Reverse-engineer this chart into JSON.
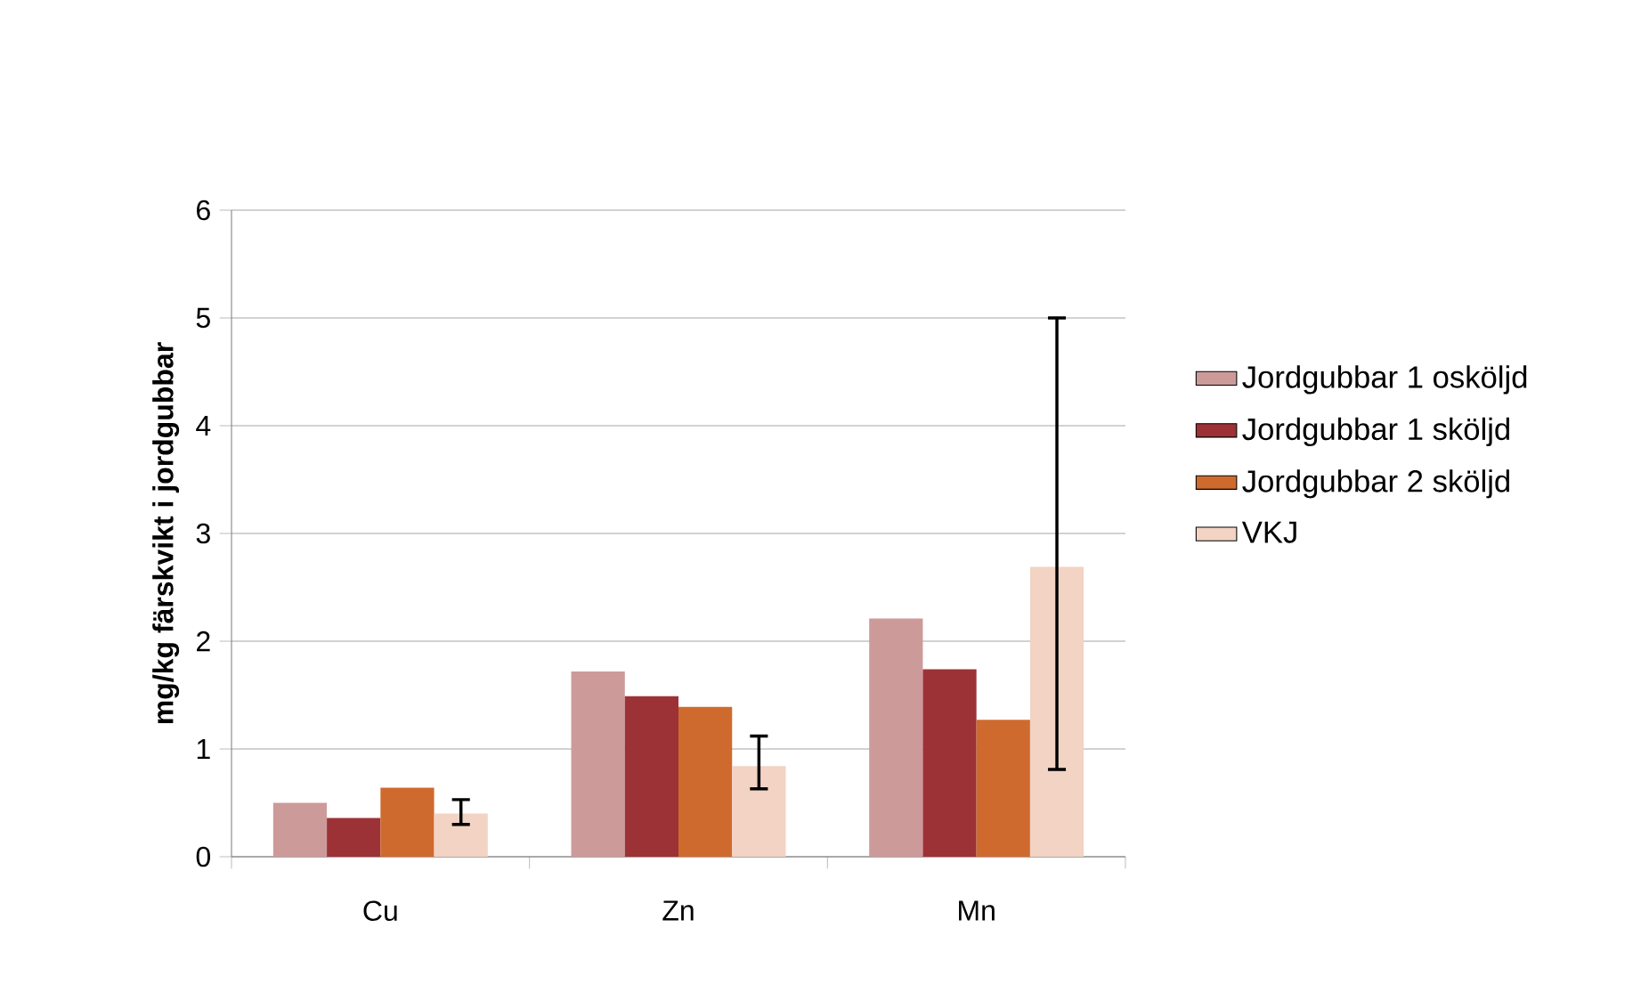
{
  "chart_data": {
    "type": "bar",
    "ylabel": "mg/kg färskvikt i jordgubbar",
    "categories": [
      "Cu",
      "Zn",
      "Mn"
    ],
    "series": [
      {
        "name": "Jordgubbar 1 osköljd",
        "color": "#cd9a9a",
        "values": [
          0.5,
          1.72,
          2.21
        ]
      },
      {
        "name": "Jordgubbar 1 sköljd",
        "color": "#9c3236",
        "values": [
          0.36,
          1.49,
          1.74
        ]
      },
      {
        "name": "Jordgubbar 2 sköljd",
        "color": "#cf6a2e",
        "values": [
          0.64,
          1.39,
          1.27
        ]
      },
      {
        "name": "VKJ",
        "color": "#f2d3c4",
        "values": [
          0.4,
          0.84,
          2.69
        ],
        "errors": [
          [
            0.3,
            0.53
          ],
          [
            0.63,
            1.12
          ],
          [
            0.81,
            5.0
          ]
        ]
      }
    ],
    "ylim": [
      0,
      6
    ],
    "yticks": [
      0,
      1,
      2,
      3,
      4,
      5,
      6
    ],
    "grid": "y",
    "legend": "right"
  }
}
